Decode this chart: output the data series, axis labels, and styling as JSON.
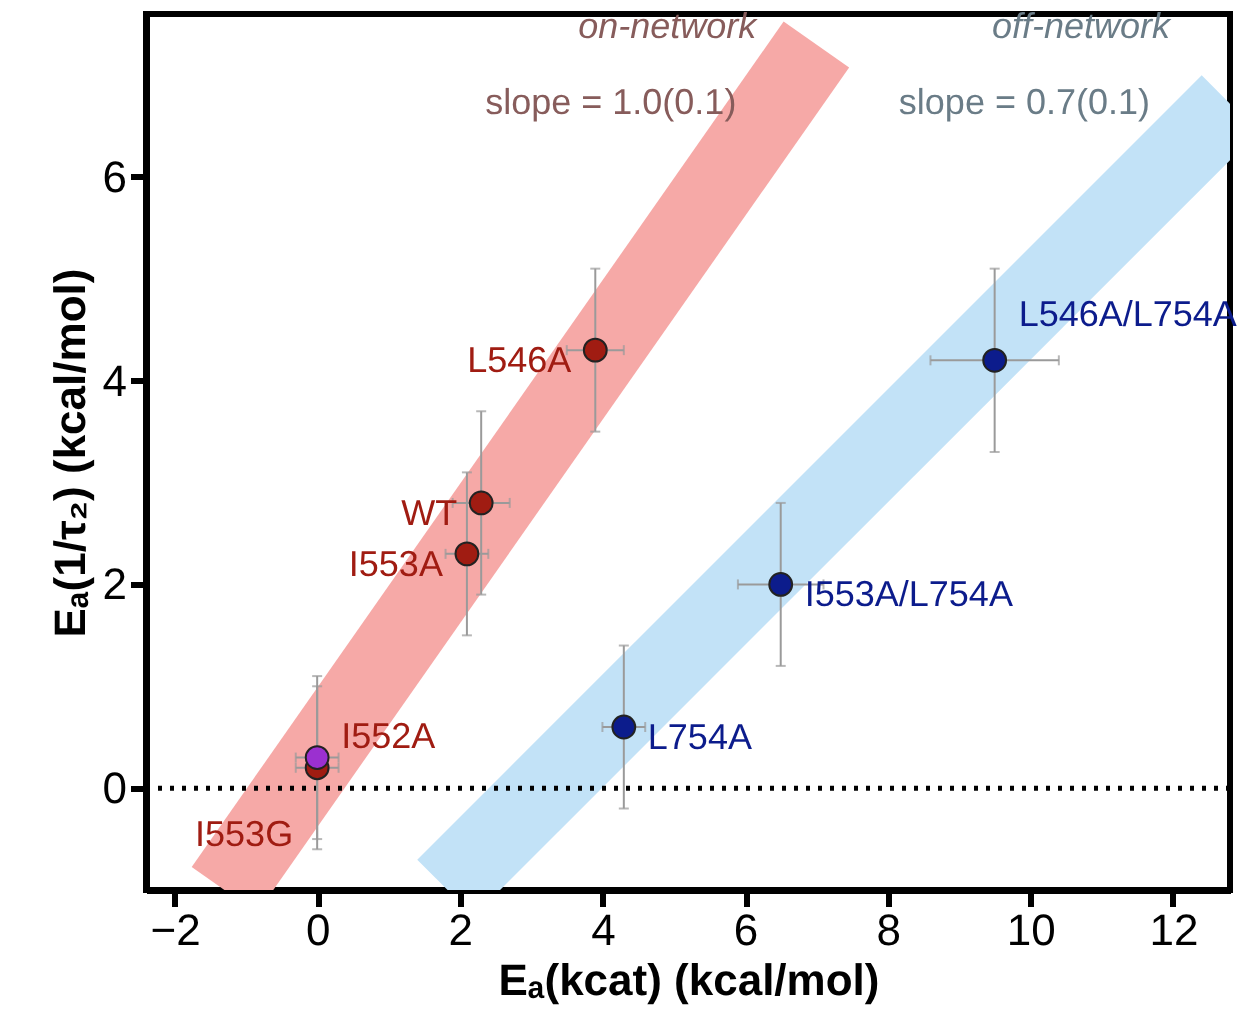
{
  "chart_data": {
    "type": "scatter",
    "xlabel": "Eₐ(kcat) (kcal/mol)",
    "ylabel": "Eₐ(1/τ₂) (kcal/mol)",
    "xlim": [
      -2.4,
      12.8
    ],
    "ylim": [
      -1.0,
      7.6
    ],
    "xticks": [
      -2,
      0,
      2,
      4,
      6,
      8,
      10,
      12
    ],
    "yticks": [
      0,
      2,
      4,
      6
    ],
    "grid": false,
    "marker": "circle",
    "ref_lines": [
      {
        "axis": "y",
        "value": 0,
        "color": "#000000",
        "line_style": "dotted"
      }
    ],
    "annotations": [
      "slope = 1.0(0.1)",
      "slope = 0.7(0.1)"
    ],
    "series": [
      {
        "name": "on-network",
        "type": "line",
        "marker": "none",
        "color": "#f6a9a7",
        "x": [
          -1.3,
          7.0
        ],
        "values": [
          -1.0,
          7.3
        ]
      },
      {
        "name": "off-network",
        "type": "line",
        "marker": "none",
        "color": "#c2e2f7",
        "x": [
          1.8,
          12.8
        ],
        "values": [
          -0.98,
          6.72
        ]
      },
      {
        "color": "#a01c12",
        "colors": [
          "#a01c12",
          "#9b30d0",
          "#a01c12",
          "#a01c12",
          "#a01c12"
        ],
        "x": [
          0,
          0,
          2.1,
          2.3,
          3.9
        ],
        "values": [
          0.2,
          0.3,
          2.3,
          2.8,
          4.3
        ],
        "errors": [
          0.8,
          0.8,
          0.8,
          0.9,
          0.8
        ],
        "xerrors": [
          0.3,
          0.3,
          0.3,
          0.4,
          0.4
        ],
        "value_labels": [
          "I553G",
          "I552A",
          "I553A",
          "WT",
          "L546A"
        ]
      },
      {
        "color": "#0c1c8c",
        "x": [
          4.3,
          6.5,
          9.5
        ],
        "values": [
          0.6,
          2.0,
          4.2
        ],
        "errors": [
          0.8,
          0.8,
          0.9
        ],
        "xerrors": [
          0.3,
          0.6,
          0.9
        ],
        "value_labels": [
          "L754A",
          "I553A/L754A",
          "L546A/L754A"
        ]
      }
    ]
  }
}
